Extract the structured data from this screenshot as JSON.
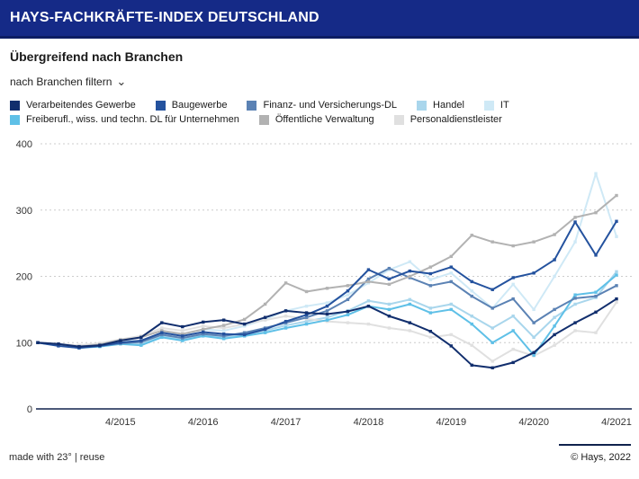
{
  "header": {
    "title": "HAYS-FACHKRÄFTE-INDEX DEUTSCHLAND"
  },
  "subtitle": "Übergreifend nach Branchen",
  "filter": {
    "label": "nach Branchen filtern",
    "chevron": "⌄"
  },
  "footer": {
    "left": "made with 23° | reuse",
    "right": "© Hays, 2022"
  },
  "chart_data": {
    "type": "line",
    "title": "Übergreifend nach Branchen",
    "xlabel": "",
    "ylabel": "",
    "ylim": [
      0,
      400
    ],
    "yticks": [
      0,
      100,
      200,
      300,
      400
    ],
    "grid": "horizontal-dashed",
    "legend_position": "top",
    "marker": "square",
    "x": [
      "4/2014",
      "7/2014",
      "10/2014",
      "1/2015",
      "4/2015",
      "7/2015",
      "10/2015",
      "1/2016",
      "4/2016",
      "7/2016",
      "10/2016",
      "1/2017",
      "4/2017",
      "7/2017",
      "10/2017",
      "1/2018",
      "4/2018",
      "7/2018",
      "10/2018",
      "1/2019",
      "4/2019",
      "7/2019",
      "10/2019",
      "1/2020",
      "4/2020",
      "7/2020",
      "10/2020",
      "1/2021",
      "4/2021"
    ],
    "x_ticks_shown": [
      "4/2015",
      "4/2016",
      "4/2017",
      "4/2018",
      "4/2019",
      "4/2020",
      "4/2021"
    ],
    "series": [
      {
        "name": "Verarbeitendes Gewerbe",
        "color": "#112e6d",
        "values": [
          100,
          98,
          94,
          96,
          103,
          108,
          130,
          124,
          131,
          134,
          128,
          138,
          148,
          145,
          143,
          147,
          155,
          140,
          130,
          117,
          95,
          66,
          62,
          70,
          85,
          112,
          130,
          146,
          166
        ]
      },
      {
        "name": "Baugewerbe",
        "color": "#24529e",
        "values": [
          100,
          95,
          92,
          95,
          100,
          103,
          115,
          110,
          116,
          113,
          112,
          120,
          132,
          142,
          155,
          178,
          210,
          196,
          208,
          204,
          214,
          192,
          180,
          198,
          205,
          225,
          282,
          232,
          283
        ]
      },
      {
        "name": "Finanz- und Versicherungs-DL",
        "color": "#5b82b4",
        "values": [
          100,
          96,
          93,
          95,
          99,
          101,
          112,
          107,
          113,
          110,
          115,
          122,
          130,
          138,
          148,
          165,
          196,
          212,
          198,
          186,
          192,
          170,
          152,
          166,
          130,
          150,
          167,
          170,
          186
        ]
      },
      {
        "name": "Handel",
        "color": "#a9d6ec",
        "values": [
          100,
          97,
          95,
          96,
          100,
          98,
          110,
          105,
          112,
          108,
          112,
          118,
          126,
          132,
          138,
          148,
          163,
          158,
          165,
          152,
          158,
          140,
          122,
          140,
          108,
          138,
          158,
          168,
          207
        ]
      },
      {
        "name": "IT",
        "color": "#cfe9f6",
        "values": [
          100,
          97,
          96,
          98,
          104,
          102,
          115,
          112,
          120,
          118,
          125,
          135,
          148,
          155,
          160,
          172,
          190,
          210,
          222,
          195,
          205,
          178,
          152,
          188,
          150,
          200,
          252,
          355,
          260
        ]
      },
      {
        "name": "Freiberufl., wiss. und techn. DL für Unternehmen",
        "color": "#5fc0e7",
        "values": [
          100,
          96,
          92,
          94,
          98,
          96,
          108,
          103,
          110,
          106,
          110,
          115,
          122,
          128,
          134,
          142,
          155,
          150,
          158,
          145,
          150,
          128,
          100,
          118,
          81,
          125,
          172,
          176,
          202
        ]
      },
      {
        "name": "Öffentliche Verwaltung",
        "color": "#b2b2b2",
        "values": [
          100,
          96,
          94,
          97,
          104,
          108,
          118,
          113,
          120,
          126,
          135,
          158,
          190,
          177,
          182,
          186,
          192,
          188,
          200,
          214,
          230,
          262,
          252,
          246,
          252,
          263,
          289,
          296,
          322
        ]
      },
      {
        "name": "Personaldienstleister",
        "color": "#e0e0e0",
        "values": [
          100,
          98,
          96,
          99,
          105,
          110,
          122,
          118,
          125,
          122,
          128,
          134,
          140,
          136,
          132,
          130,
          128,
          122,
          118,
          108,
          112,
          96,
          72,
          90,
          80,
          96,
          118,
          115,
          161
        ]
      }
    ]
  }
}
